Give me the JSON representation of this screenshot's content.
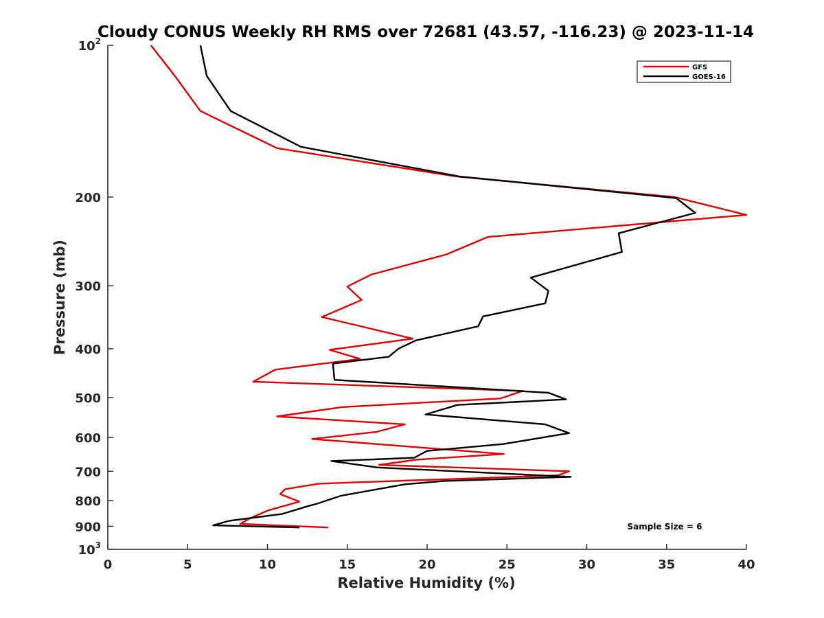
{
  "chart_data": {
    "type": "line",
    "title": "Cloudy CONUS Weekly RH RMS over 72681 (43.57, -116.23) @ 2023-11-14",
    "xlabel": "Relative Humidity (%)",
    "ylabel": "Pressure (mb)",
    "xlim": [
      0,
      40
    ],
    "ylim": [
      100,
      1000
    ],
    "y_scale": "log",
    "y_reversed": true,
    "grid": false,
    "legend_placement": "top-right",
    "x_ticks": [
      "0",
      "5",
      "10",
      "15",
      "20",
      "25",
      "30",
      "35",
      "40"
    ],
    "y_ticks": [
      {
        "value": 100,
        "base": "10",
        "exp": "2"
      },
      {
        "value": 200,
        "label": "200"
      },
      {
        "value": 300,
        "label": "300"
      },
      {
        "value": 400,
        "label": "400"
      },
      {
        "value": 500,
        "label": "500"
      },
      {
        "value": 600,
        "label": "600"
      },
      {
        "value": 700,
        "label": "700"
      },
      {
        "value": 800,
        "label": "800"
      },
      {
        "value": 900,
        "label": "900"
      },
      {
        "value": 1000,
        "base": "10",
        "exp": "3"
      }
    ],
    "series": [
      {
        "name": "GFS",
        "color": "#e00000",
        "points": [
          [
            2.7,
            100
          ],
          [
            4.2,
            115
          ],
          [
            5.8,
            135
          ],
          [
            10.6,
            160
          ],
          [
            21.8,
            182
          ],
          [
            35.5,
            200
          ],
          [
            40.0,
            217
          ],
          [
            23.8,
            240
          ],
          [
            21.2,
            260
          ],
          [
            16.5,
            285
          ],
          [
            15.0,
            301
          ],
          [
            15.9,
            320
          ],
          [
            13.4,
            346
          ],
          [
            19.1,
            382
          ],
          [
            13.9,
            402
          ],
          [
            15.8,
            419
          ],
          [
            10.5,
            440
          ],
          [
            9.1,
            465
          ],
          [
            26.0,
            485
          ],
          [
            24.6,
            502
          ],
          [
            14.7,
            522
          ],
          [
            10.6,
            545
          ],
          [
            18.6,
            565
          ],
          [
            16.8,
            585
          ],
          [
            12.8,
            604
          ],
          [
            24.8,
            647
          ],
          [
            19.3,
            664
          ],
          [
            17.0,
            680
          ],
          [
            28.9,
            700
          ],
          [
            28.2,
            713
          ],
          [
            13.2,
            741
          ],
          [
            11.1,
            760
          ],
          [
            10.8,
            777
          ],
          [
            12.0,
            804
          ],
          [
            10.0,
            838
          ],
          [
            8.9,
            868
          ],
          [
            8.3,
            890
          ],
          [
            13.8,
            905
          ]
        ]
      },
      {
        "name": "GOES-16",
        "color": "#000000",
        "points": [
          [
            5.8,
            100
          ],
          [
            6.2,
            115
          ],
          [
            7.7,
            135
          ],
          [
            12.1,
            159
          ],
          [
            22.0,
            182
          ],
          [
            35.6,
            201
          ],
          [
            36.8,
            215
          ],
          [
            32.0,
            236
          ],
          [
            32.2,
            257
          ],
          [
            26.5,
            289
          ],
          [
            27.6,
            307
          ],
          [
            27.4,
            325
          ],
          [
            23.5,
            345
          ],
          [
            23.2,
            361
          ],
          [
            19.3,
            385
          ],
          [
            18.2,
            400
          ],
          [
            17.6,
            415
          ],
          [
            14.1,
            428
          ],
          [
            14.2,
            461
          ],
          [
            27.6,
            489
          ],
          [
            28.7,
            504
          ],
          [
            21.9,
            517
          ],
          [
            19.9,
            540
          ],
          [
            27.4,
            565
          ],
          [
            28.9,
            588
          ],
          [
            24.8,
            618
          ],
          [
            20.0,
            638
          ],
          [
            19.2,
            658
          ],
          [
            18.3,
            660
          ],
          [
            14.0,
            668
          ],
          [
            16.9,
            688
          ],
          [
            29.0,
            718
          ],
          [
            21.0,
            732
          ],
          [
            18.6,
            743
          ],
          [
            14.6,
            783
          ],
          [
            13.1,
            812
          ],
          [
            12.6,
            820
          ],
          [
            10.9,
            851
          ],
          [
            7.6,
            878
          ],
          [
            6.6,
            896
          ],
          [
            12.0,
            905
          ]
        ]
      }
    ],
    "annotation": "Sample Size = 6"
  }
}
